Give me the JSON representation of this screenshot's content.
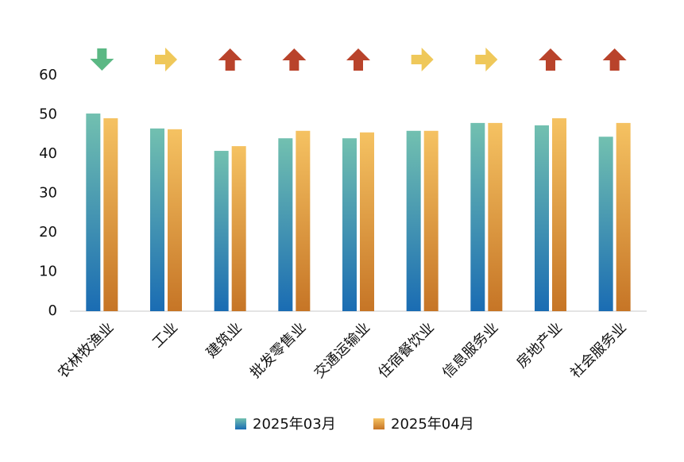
{
  "chart_data": {
    "type": "bar",
    "categories": [
      "农林牧渔业",
      "工业",
      "建筑业",
      "批发零售业",
      "交通运输业",
      "住宿餐饮业",
      "信息服务业",
      "房地产业",
      "社会服务业"
    ],
    "series": [
      {
        "name": "2025年03月",
        "color": [
          "#72c0b0",
          "#1a6cb3"
        ],
        "values": [
          50.3,
          46.5,
          40.8,
          44.0,
          44.0,
          45.9,
          47.9,
          47.3,
          44.4
        ]
      },
      {
        "name": "2025年04月",
        "color": [
          "#f5c262",
          "#c67526"
        ],
        "values": [
          49.1,
          46.3,
          42.0,
          45.9,
          45.5,
          45.9,
          47.9,
          49.1,
          47.9
        ]
      }
    ],
    "trends": [
      "down",
      "flat",
      "up",
      "up",
      "up",
      "flat",
      "flat",
      "up",
      "up"
    ],
    "trend_colors": {
      "down": "#5bb884",
      "flat": "#efc85a",
      "up": "#b9432b"
    },
    "ylim": [
      0,
      60
    ],
    "yticks": [
      0,
      10,
      20,
      30,
      40,
      50,
      60
    ],
    "grid": false
  }
}
